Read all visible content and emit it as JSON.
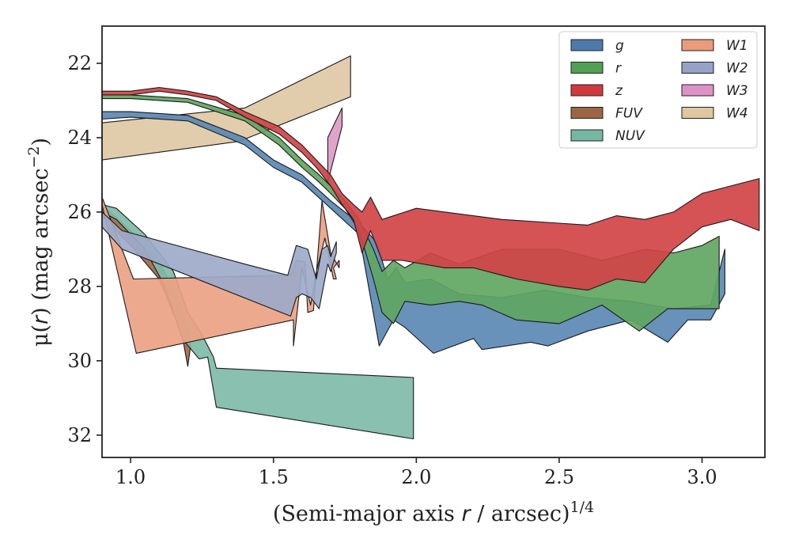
{
  "chart_data": {
    "type": "area",
    "xlabel": {
      "prefix": "(Semi-major axis ",
      "var": "r",
      "suffix": " / arcsec)",
      "sup": "1/4"
    },
    "ylabel": {
      "prefix": "μ(",
      "var": "r",
      "suffix": ") (mag arcsec",
      "sup": "−2",
      "close": ")"
    },
    "xlim": [
      0.9,
      3.22
    ],
    "ylim": [
      21.0,
      32.6
    ],
    "y_inverted": true,
    "grid": false,
    "legend_position": "top-right",
    "legend_columns": 2,
    "xticks": [
      {
        "value": 1.0,
        "label": "1.0"
      },
      {
        "value": 1.5,
        "label": "1.5"
      },
      {
        "value": 2.0,
        "label": "2.0"
      },
      {
        "value": 2.5,
        "label": "2.5"
      },
      {
        "value": 3.0,
        "label": "3.0"
      }
    ],
    "yticks": [
      {
        "value": 22,
        "label": "22"
      },
      {
        "value": 24,
        "label": "24"
      },
      {
        "value": 26,
        "label": "26"
      },
      {
        "value": 28,
        "label": "28"
      },
      {
        "value": 30,
        "label": "30"
      },
      {
        "value": 32,
        "label": "32"
      }
    ],
    "series": [
      {
        "name": "W4",
        "color": "#dec9a5",
        "upper": [
          [
            0.9,
            23.6
          ],
          [
            1.4,
            23.2
          ],
          [
            1.77,
            21.8
          ]
        ],
        "lower": [
          [
            0.9,
            24.6
          ],
          [
            1.38,
            24.1
          ],
          [
            1.77,
            22.9
          ]
        ]
      },
      {
        "name": "FUV",
        "color": "#a0694a",
        "upper": [
          [
            0.9,
            25.8
          ],
          [
            1.0,
            26.5
          ],
          [
            1.1,
            27.3
          ],
          [
            1.2,
            29.0
          ],
          [
            1.21,
            29.6
          ]
        ],
        "lower": [
          [
            0.9,
            26.1
          ],
          [
            1.0,
            26.9
          ],
          [
            1.1,
            27.8
          ],
          [
            1.18,
            29.3
          ],
          [
            1.2,
            30.15
          ]
        ]
      },
      {
        "name": "NUV",
        "color": "#7fbba8",
        "upper": [
          [
            0.9,
            25.8
          ],
          [
            0.95,
            25.9
          ],
          [
            1.05,
            26.6
          ],
          [
            1.15,
            27.6
          ],
          [
            1.2,
            28.7
          ],
          [
            1.25,
            29.3
          ],
          [
            1.29,
            29.9
          ],
          [
            1.3,
            30.2
          ],
          [
            1.99,
            30.45
          ]
        ],
        "lower": [
          [
            0.9,
            26.0
          ],
          [
            0.95,
            26.2
          ],
          [
            1.05,
            27.0
          ],
          [
            1.12,
            28.0
          ],
          [
            1.18,
            29.4
          ],
          [
            1.24,
            29.95
          ],
          [
            1.27,
            29.9
          ],
          [
            1.3,
            31.25
          ],
          [
            1.99,
            32.1
          ]
        ]
      },
      {
        "name": "W1",
        "color": "#eca283",
        "upper": [
          [
            0.9,
            25.6
          ],
          [
            1.01,
            27.8
          ],
          [
            1.56,
            27.7
          ],
          [
            1.58,
            27.3
          ],
          [
            1.61,
            27.35
          ],
          [
            1.62,
            28.7
          ],
          [
            1.64,
            28.65
          ],
          [
            1.67,
            25.7
          ],
          [
            1.7,
            27.1
          ],
          [
            1.73,
            27.5
          ],
          [
            1.73,
            27.3
          ],
          [
            1.71,
            27.5
          ]
        ],
        "lower": [
          [
            0.9,
            25.8
          ],
          [
            1.02,
            29.8
          ],
          [
            1.57,
            28.9
          ],
          [
            1.57,
            29.6
          ],
          [
            1.6,
            27.5
          ],
          [
            1.63,
            28.5
          ],
          [
            1.65,
            27.6
          ],
          [
            1.68,
            26.7
          ],
          [
            1.71,
            27.8
          ],
          [
            1.72,
            27.8
          ]
        ]
      },
      {
        "name": "W2",
        "color": "#9daac9",
        "upper": [
          [
            0.9,
            26.0
          ],
          [
            0.97,
            26.5
          ],
          [
            1.4,
            27.4
          ],
          [
            1.55,
            27.7
          ],
          [
            1.58,
            26.9
          ],
          [
            1.62,
            27.0
          ],
          [
            1.65,
            27.8
          ],
          [
            1.67,
            27.0
          ],
          [
            1.69,
            26.9
          ],
          [
            1.7,
            27.2
          ],
          [
            1.72,
            26.8
          ]
        ],
        "lower": [
          [
            0.9,
            26.4
          ],
          [
            0.97,
            27.0
          ],
          [
            1.56,
            28.8
          ],
          [
            1.58,
            28.3
          ],
          [
            1.6,
            28.2
          ],
          [
            1.63,
            28.3
          ],
          [
            1.66,
            28.6
          ],
          [
            1.69,
            27.4
          ],
          [
            1.7,
            27.6
          ],
          [
            1.72,
            27.1
          ]
        ]
      },
      {
        "name": "W3",
        "color": "#de9bc8",
        "upper": [
          [
            1.69,
            24.0
          ],
          [
            1.74,
            23.2
          ]
        ],
        "lower": [
          [
            1.69,
            25.2
          ],
          [
            1.74,
            23.7
          ]
        ]
      },
      {
        "name": "g",
        "color": "#5b89b4",
        "upper": [
          [
            0.9,
            23.3
          ],
          [
            1.0,
            23.3
          ],
          [
            1.2,
            23.4
          ],
          [
            1.4,
            24.0
          ],
          [
            1.5,
            24.6
          ],
          [
            1.6,
            25.0
          ],
          [
            1.7,
            25.7
          ],
          [
            1.8,
            26.3
          ],
          [
            1.86,
            26.8
          ],
          [
            1.9,
            27.8
          ],
          [
            1.93,
            27.5
          ],
          [
            1.96,
            27.9
          ],
          [
            2.05,
            27.8
          ],
          [
            2.15,
            28.2
          ],
          [
            2.3,
            28.3
          ],
          [
            2.45,
            28.1
          ],
          [
            2.6,
            28.3
          ],
          [
            2.75,
            28.4
          ],
          [
            2.9,
            28.6
          ],
          [
            3.03,
            28.5
          ],
          [
            3.08,
            27.0
          ]
        ],
        "lower": [
          [
            0.9,
            23.5
          ],
          [
            1.0,
            23.45
          ],
          [
            1.2,
            23.55
          ],
          [
            1.4,
            24.2
          ],
          [
            1.5,
            24.8
          ],
          [
            1.6,
            25.2
          ],
          [
            1.7,
            25.9
          ],
          [
            1.8,
            26.6
          ],
          [
            1.87,
            29.6
          ],
          [
            1.92,
            28.9
          ],
          [
            1.96,
            29.1
          ],
          [
            2.06,
            29.8
          ],
          [
            2.2,
            29.4
          ],
          [
            2.23,
            29.7
          ],
          [
            2.4,
            29.5
          ],
          [
            2.46,
            29.6
          ],
          [
            2.6,
            29.2
          ],
          [
            2.75,
            28.9
          ],
          [
            2.88,
            29.5
          ],
          [
            2.95,
            28.9
          ],
          [
            3.03,
            28.9
          ],
          [
            3.08,
            28.2
          ]
        ]
      },
      {
        "name": "r",
        "color": "#61a662",
        "upper": [
          [
            0.9,
            22.85
          ],
          [
            1.0,
            22.85
          ],
          [
            1.2,
            22.95
          ],
          [
            1.4,
            23.4
          ],
          [
            1.52,
            24.0
          ],
          [
            1.6,
            24.6
          ],
          [
            1.66,
            25.0
          ],
          [
            1.7,
            25.3
          ],
          [
            1.75,
            25.7
          ],
          [
            1.8,
            26.2
          ],
          [
            1.85,
            27.0
          ],
          [
            1.88,
            27.6
          ],
          [
            1.92,
            27.3
          ],
          [
            1.96,
            27.5
          ],
          [
            2.05,
            27.1
          ],
          [
            2.15,
            27.4
          ],
          [
            2.3,
            27.0
          ],
          [
            2.5,
            27.0
          ],
          [
            2.65,
            27.3
          ],
          [
            2.8,
            27.0
          ],
          [
            2.9,
            27.1
          ],
          [
            3.0,
            26.9
          ],
          [
            3.06,
            26.65
          ]
        ],
        "lower": [
          [
            0.9,
            22.95
          ],
          [
            1.0,
            22.95
          ],
          [
            1.2,
            23.05
          ],
          [
            1.4,
            23.55
          ],
          [
            1.52,
            24.2
          ],
          [
            1.6,
            24.8
          ],
          [
            1.66,
            25.2
          ],
          [
            1.7,
            25.5
          ],
          [
            1.75,
            25.9
          ],
          [
            1.8,
            26.5
          ],
          [
            1.85,
            27.8
          ],
          [
            1.88,
            28.7
          ],
          [
            1.92,
            29.0
          ],
          [
            1.96,
            28.4
          ],
          [
            2.05,
            28.5
          ],
          [
            2.15,
            28.4
          ],
          [
            2.23,
            28.5
          ],
          [
            2.35,
            28.9
          ],
          [
            2.5,
            29.0
          ],
          [
            2.65,
            28.5
          ],
          [
            2.78,
            29.2
          ],
          [
            2.88,
            28.6
          ],
          [
            3.06,
            28.6
          ]
        ]
      },
      {
        "name": "z",
        "color": "#d14346",
        "upper": [
          [
            0.9,
            22.75
          ],
          [
            1.0,
            22.75
          ],
          [
            1.1,
            22.65
          ],
          [
            1.2,
            22.75
          ],
          [
            1.3,
            22.9
          ],
          [
            1.4,
            23.3
          ],
          [
            1.52,
            23.7
          ],
          [
            1.6,
            24.2
          ],
          [
            1.65,
            24.6
          ],
          [
            1.7,
            25.0
          ],
          [
            1.74,
            25.5
          ],
          [
            1.78,
            25.8
          ],
          [
            1.81,
            26.0
          ],
          [
            1.84,
            25.6
          ],
          [
            1.88,
            26.2
          ],
          [
            2.0,
            25.9
          ],
          [
            2.1,
            26.0
          ],
          [
            2.3,
            26.2
          ],
          [
            2.5,
            26.3
          ],
          [
            2.6,
            26.35
          ],
          [
            2.7,
            26.1
          ],
          [
            2.8,
            26.2
          ],
          [
            2.9,
            26.0
          ],
          [
            3.0,
            25.5
          ],
          [
            3.1,
            25.3
          ],
          [
            3.2,
            25.1
          ]
        ],
        "lower": [
          [
            0.9,
            22.85
          ],
          [
            1.0,
            22.85
          ],
          [
            1.1,
            22.75
          ],
          [
            1.2,
            22.85
          ],
          [
            1.3,
            23.0
          ],
          [
            1.4,
            23.45
          ],
          [
            1.52,
            23.9
          ],
          [
            1.6,
            24.4
          ],
          [
            1.65,
            24.8
          ],
          [
            1.7,
            25.3
          ],
          [
            1.74,
            25.8
          ],
          [
            1.78,
            26.2
          ],
          [
            1.81,
            27.1
          ],
          [
            1.84,
            26.5
          ],
          [
            1.88,
            27.3
          ],
          [
            1.95,
            27.3
          ],
          [
            2.1,
            27.5
          ],
          [
            2.2,
            27.5
          ],
          [
            2.35,
            27.8
          ],
          [
            2.5,
            28.0
          ],
          [
            2.6,
            28.1
          ],
          [
            2.7,
            27.8
          ],
          [
            2.8,
            27.9
          ],
          [
            2.9,
            27.0
          ],
          [
            3.0,
            26.4
          ],
          [
            3.1,
            26.2
          ],
          [
            3.2,
            26.5
          ]
        ]
      }
    ],
    "legend": {
      "left": [
        {
          "name": "g",
          "color": "#4c7bab"
        },
        {
          "name": "r",
          "color": "#52a054"
        },
        {
          "name": "z",
          "color": "#d0393d"
        },
        {
          "name": "FUV",
          "color": "#9c6644"
        },
        {
          "name": "NUV",
          "color": "#76b7a3"
        }
      ],
      "right": [
        {
          "name": "W1",
          "color": "#ea9b79"
        },
        {
          "name": "W2",
          "color": "#96a3c7"
        },
        {
          "name": "W3",
          "color": "#dc93c4"
        },
        {
          "name": "W4",
          "color": "#dec7a1"
        }
      ]
    }
  }
}
